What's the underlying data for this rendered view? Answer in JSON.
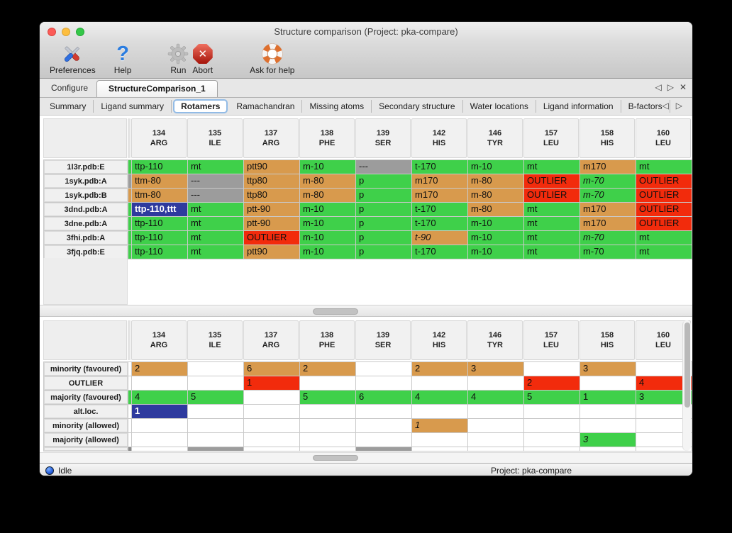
{
  "window": {
    "title": "Structure comparison (Project: pka-compare)"
  },
  "toolbar": {
    "items": [
      {
        "label": "Preferences",
        "icon": "preferences-icon"
      },
      {
        "label": "Help",
        "icon": "help-icon"
      },
      {
        "label": "Run",
        "icon": "run-icon"
      },
      {
        "label": "Abort",
        "icon": "abort-icon"
      },
      {
        "label": "Ask for help",
        "icon": "lifebuoy-icon"
      }
    ]
  },
  "tabs": {
    "main": [
      {
        "label": "Configure",
        "selected": false
      },
      {
        "label": "StructureComparison_1",
        "selected": true
      }
    ],
    "controls": {
      "left": "◁",
      "right": "▷",
      "close": "✕"
    },
    "sub": [
      {
        "label": "Summary"
      },
      {
        "label": "Ligand summary"
      },
      {
        "label": "Rotamers",
        "selected": true
      },
      {
        "label": "Ramachandran"
      },
      {
        "label": "Missing atoms"
      },
      {
        "label": "Secondary structure"
      },
      {
        "label": "Water locations"
      },
      {
        "label": "Ligand information"
      },
      {
        "label": "B-factors"
      }
    ]
  },
  "colors": {
    "green": "#3fd04a",
    "orange": "#d89a4d",
    "red": "#f22b0c",
    "gray": "#9c9c9c",
    "darkgray": "#8a8a8a",
    "blue": "#2e3a9e",
    "white": "#ffffff"
  },
  "columns": [
    {
      "num": "134",
      "res": "ARG"
    },
    {
      "num": "135",
      "res": "ILE"
    },
    {
      "num": "137",
      "res": "ARG"
    },
    {
      "num": "138",
      "res": "PHE"
    },
    {
      "num": "139",
      "res": "SER"
    },
    {
      "num": "142",
      "res": "HIS"
    },
    {
      "num": "146",
      "res": "TYR"
    },
    {
      "num": "157",
      "res": "LEU"
    },
    {
      "num": "158",
      "res": "HIS"
    },
    {
      "num": "160",
      "res": "LEU"
    }
  ],
  "top_table": {
    "rows": [
      {
        "label": "1l3r.pdb:E",
        "sliver": "green",
        "cells": [
          {
            "text": "ttp-110",
            "color": "green"
          },
          {
            "text": "mt",
            "color": "green"
          },
          {
            "text": "ptt90",
            "color": "orange"
          },
          {
            "text": "m-10",
            "color": "green"
          },
          {
            "text": "---",
            "color": "gray"
          },
          {
            "text": "t-170",
            "color": "green"
          },
          {
            "text": "m-10",
            "color": "green"
          },
          {
            "text": "mt",
            "color": "green"
          },
          {
            "text": "m170",
            "color": "orange"
          },
          {
            "text": "mt",
            "color": "green"
          }
        ]
      },
      {
        "label": "1syk.pdb:A",
        "sliver": "gray",
        "cells": [
          {
            "text": "ttm-80",
            "color": "orange"
          },
          {
            "text": "---",
            "color": "gray"
          },
          {
            "text": "ttp80",
            "color": "orange"
          },
          {
            "text": "m-80",
            "color": "orange"
          },
          {
            "text": "p",
            "color": "green"
          },
          {
            "text": "m170",
            "color": "orange"
          },
          {
            "text": "m-80",
            "color": "orange"
          },
          {
            "text": "OUTLIER",
            "color": "red"
          },
          {
            "text": "m-70",
            "color": "green",
            "italic": true
          },
          {
            "text": "OUTLIER",
            "color": "red"
          }
        ]
      },
      {
        "label": "1syk.pdb:B",
        "sliver": "orange",
        "cells": [
          {
            "text": "ttm-80",
            "color": "orange"
          },
          {
            "text": "---",
            "color": "gray"
          },
          {
            "text": "ttp80",
            "color": "orange"
          },
          {
            "text": "m-80",
            "color": "orange"
          },
          {
            "text": "p",
            "color": "green"
          },
          {
            "text": "m170",
            "color": "orange"
          },
          {
            "text": "m-80",
            "color": "orange"
          },
          {
            "text": "OUTLIER",
            "color": "red"
          },
          {
            "text": "m-70",
            "color": "green",
            "italic": true
          },
          {
            "text": "OUTLIER",
            "color": "red"
          }
        ]
      },
      {
        "label": "3dnd.pdb:A",
        "sliver": "green",
        "cells": [
          {
            "text": "ttp-110,ttt",
            "color": "blue",
            "selected": true
          },
          {
            "text": "mt",
            "color": "green"
          },
          {
            "text": "ptt-90",
            "color": "orange"
          },
          {
            "text": "m-10",
            "color": "green"
          },
          {
            "text": "p",
            "color": "green"
          },
          {
            "text": "t-170",
            "color": "green"
          },
          {
            "text": "m-80",
            "color": "orange"
          },
          {
            "text": "mt",
            "color": "green"
          },
          {
            "text": "m170",
            "color": "orange"
          },
          {
            "text": "OUTLIER",
            "color": "red"
          }
        ]
      },
      {
        "label": "3dne.pdb:A",
        "sliver": "green",
        "cells": [
          {
            "text": "ttp-110",
            "color": "green"
          },
          {
            "text": "mt",
            "color": "green"
          },
          {
            "text": "ptt-90",
            "color": "orange"
          },
          {
            "text": "m-10",
            "color": "green"
          },
          {
            "text": "p",
            "color": "green"
          },
          {
            "text": "t-170",
            "color": "green"
          },
          {
            "text": "m-10",
            "color": "green"
          },
          {
            "text": "mt",
            "color": "green"
          },
          {
            "text": "m170",
            "color": "orange"
          },
          {
            "text": "OUTLIER",
            "color": "red"
          }
        ]
      },
      {
        "label": "3fhi.pdb:A",
        "sliver": "green",
        "cells": [
          {
            "text": "ttp-110",
            "color": "green"
          },
          {
            "text": "mt",
            "color": "green"
          },
          {
            "text": "OUTLIER",
            "color": "red"
          },
          {
            "text": "m-10",
            "color": "green"
          },
          {
            "text": "p",
            "color": "green"
          },
          {
            "text": "t-90",
            "color": "orange",
            "italic": true
          },
          {
            "text": "m-10",
            "color": "green"
          },
          {
            "text": "mt",
            "color": "green"
          },
          {
            "text": "m-70",
            "color": "green",
            "italic": true
          },
          {
            "text": "mt",
            "color": "green"
          }
        ]
      },
      {
        "label": "3fjq.pdb:E",
        "sliver": "green",
        "cells": [
          {
            "text": "ttp-110",
            "color": "green"
          },
          {
            "text": "mt",
            "color": "green"
          },
          {
            "text": "ptt90",
            "color": "orange"
          },
          {
            "text": "m-10",
            "color": "green"
          },
          {
            "text": "p",
            "color": "green"
          },
          {
            "text": "t-170",
            "color": "green"
          },
          {
            "text": "m-10",
            "color": "green"
          },
          {
            "text": "mt",
            "color": "green"
          },
          {
            "text": "m-70",
            "color": "green"
          },
          {
            "text": "mt",
            "color": "green"
          }
        ]
      }
    ]
  },
  "bottom_table": {
    "rows": [
      {
        "label": "minority (favoured)",
        "sliver": "white",
        "cells": [
          {
            "text": "2",
            "color": "orange"
          },
          {
            "text": "",
            "color": "white"
          },
          {
            "text": "6",
            "color": "orange"
          },
          {
            "text": "2",
            "color": "orange"
          },
          {
            "text": "",
            "color": "white"
          },
          {
            "text": "2",
            "color": "orange"
          },
          {
            "text": "3",
            "color": "orange"
          },
          {
            "text": "",
            "color": "white"
          },
          {
            "text": "3",
            "color": "orange"
          },
          {
            "text": "",
            "color": "white"
          }
        ]
      },
      {
        "label": "OUTLIER",
        "sliver": "white",
        "cells": [
          {
            "text": "",
            "color": "white"
          },
          {
            "text": "",
            "color": "white"
          },
          {
            "text": "1",
            "color": "red"
          },
          {
            "text": "",
            "color": "white"
          },
          {
            "text": "",
            "color": "white"
          },
          {
            "text": "",
            "color": "white"
          },
          {
            "text": "",
            "color": "white"
          },
          {
            "text": "2",
            "color": "red"
          },
          {
            "text": "",
            "color": "white"
          },
          {
            "text": "4",
            "color": "red"
          }
        ]
      },
      {
        "label": "majority (favoured)",
        "sliver": "green",
        "cells": [
          {
            "text": "4",
            "color": "green"
          },
          {
            "text": "5",
            "color": "green"
          },
          {
            "text": "",
            "color": "white"
          },
          {
            "text": "5",
            "color": "green"
          },
          {
            "text": "6",
            "color": "green"
          },
          {
            "text": "4",
            "color": "green"
          },
          {
            "text": "4",
            "color": "green"
          },
          {
            "text": "5",
            "color": "green"
          },
          {
            "text": "1",
            "color": "green"
          },
          {
            "text": "3",
            "color": "green"
          }
        ]
      },
      {
        "label": "alt.loc.",
        "sliver": "white",
        "cells": [
          {
            "text": "1",
            "color": "blue",
            "selected": true
          },
          {
            "text": "",
            "color": "white"
          },
          {
            "text": "",
            "color": "white"
          },
          {
            "text": "",
            "color": "white"
          },
          {
            "text": "",
            "color": "white"
          },
          {
            "text": "",
            "color": "white"
          },
          {
            "text": "",
            "color": "white"
          },
          {
            "text": "",
            "color": "white"
          },
          {
            "text": "",
            "color": "white"
          },
          {
            "text": "",
            "color": "white"
          }
        ]
      },
      {
        "label": "minority (allowed)",
        "sliver": "white",
        "cells": [
          {
            "text": "",
            "color": "white"
          },
          {
            "text": "",
            "color": "white"
          },
          {
            "text": "",
            "color": "white"
          },
          {
            "text": "",
            "color": "white"
          },
          {
            "text": "",
            "color": "white"
          },
          {
            "text": "1",
            "color": "orange",
            "italic": true
          },
          {
            "text": "",
            "color": "white"
          },
          {
            "text": "",
            "color": "white"
          },
          {
            "text": "",
            "color": "white"
          },
          {
            "text": "",
            "color": "white"
          }
        ]
      },
      {
        "label": "majority (allowed)",
        "sliver": "white",
        "cells": [
          {
            "text": "",
            "color": "white"
          },
          {
            "text": "",
            "color": "white"
          },
          {
            "text": "",
            "color": "white"
          },
          {
            "text": "",
            "color": "white"
          },
          {
            "text": "",
            "color": "white"
          },
          {
            "text": "",
            "color": "white"
          },
          {
            "text": "",
            "color": "white"
          },
          {
            "text": "",
            "color": "white"
          },
          {
            "text": "3",
            "color": "green",
            "italic": true
          },
          {
            "text": "",
            "color": "white"
          }
        ]
      }
    ],
    "partial_row": {
      "sliver": "darkgray",
      "cells": [
        "white",
        "gray",
        "white",
        "white",
        "gray",
        "white",
        "white",
        "white",
        "white",
        "white"
      ]
    }
  },
  "statusbar": {
    "status": "Idle",
    "project": "Project: pka-compare"
  }
}
